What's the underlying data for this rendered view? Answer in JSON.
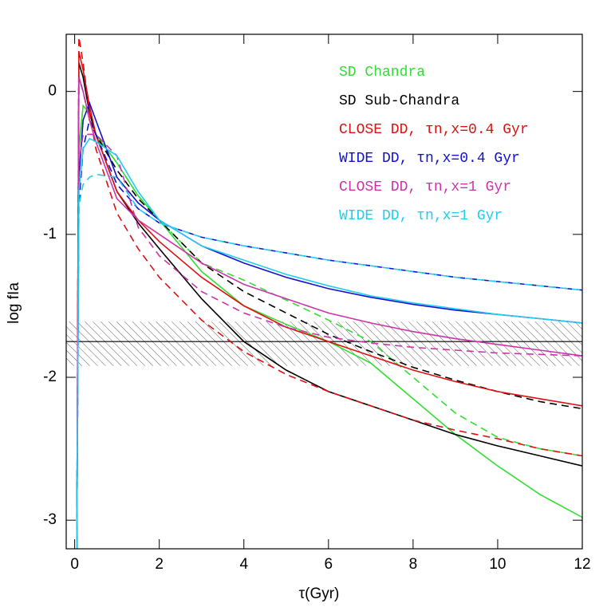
{
  "chart_data": {
    "type": "line",
    "x_label": "τ(Gyr)",
    "y_label": "log fIa",
    "xlim": [
      -0.2,
      12
    ],
    "ylim": [
      -3.2,
      0.4
    ],
    "xticks": [
      0,
      2,
      4,
      6,
      8,
      10,
      12
    ],
    "yticks": [
      -3,
      -2,
      -1,
      0
    ],
    "x": [
      0.05,
      0.1,
      0.2,
      0.35,
      0.5,
      1,
      1.5,
      2,
      3,
      4,
      5,
      6,
      7,
      8,
      9,
      10,
      11,
      12
    ],
    "band": {
      "lower": -1.92,
      "upper": -1.61,
      "center": -1.75
    },
    "series": [
      {
        "name": "SD Chandra",
        "color": "#33dd33",
        "values": [
          -3.2,
          -0.4,
          -0.1,
          -0.15,
          -0.3,
          -0.5,
          -0.73,
          -0.9,
          -1.26,
          -1.5,
          -1.63,
          -1.75,
          -1.9,
          -2.15,
          -2.4,
          -2.62,
          -2.82,
          -2.98
        ],
        "dashed_values": [
          -3.2,
          -0.4,
          -0.1,
          -0.15,
          -0.3,
          -0.5,
          -0.73,
          -0.9,
          -1.2,
          -1.32,
          -1.46,
          -1.6,
          -1.75,
          -2.0,
          -2.25,
          -2.42,
          -2.5,
          -2.55
        ]
      },
      {
        "name": "SD Sub-Chandra",
        "color": "#000000",
        "values": [
          -3.2,
          0.2,
          0.1,
          -0.15,
          -0.3,
          -0.7,
          -0.92,
          -1.1,
          -1.45,
          -1.75,
          -1.95,
          -2.1,
          -2.2,
          -2.3,
          -2.4,
          -2.48,
          -2.55,
          -2.62
        ],
        "dashed_values": [
          -3.2,
          0.1,
          0.0,
          -0.2,
          -0.3,
          -0.55,
          -0.75,
          -0.9,
          -1.2,
          -1.4,
          -1.55,
          -1.7,
          -1.82,
          -1.93,
          -2.02,
          -2.1,
          -2.17,
          -2.22
        ]
      },
      {
        "name": "CLOSE DD, τn,x=0.4 Gyr",
        "color": "#dd1111",
        "values": [
          -3.2,
          0.28,
          0.15,
          -0.1,
          -0.3,
          -0.7,
          -0.9,
          -1.05,
          -1.3,
          -1.5,
          -1.65,
          -1.75,
          -1.85,
          -1.95,
          -2.03,
          -2.1,
          -2.15,
          -2.2
        ],
        "dashed_values": [
          -3.2,
          0.38,
          0.2,
          -0.15,
          -0.4,
          -0.85,
          -1.1,
          -1.3,
          -1.6,
          -1.82,
          -1.98,
          -2.1,
          -2.2,
          -2.3,
          -2.37,
          -2.43,
          -2.5,
          -2.55
        ]
      },
      {
        "name": "WIDE DD, τn,x=0.4 Gyr",
        "color": "#1111cc",
        "values": [
          -3.2,
          -0.6,
          -0.2,
          -0.08,
          -0.2,
          -0.6,
          -0.78,
          -0.9,
          -1.08,
          -1.2,
          -1.3,
          -1.38,
          -1.44,
          -1.49,
          -1.53,
          -1.56,
          -1.59,
          -1.62
        ],
        "dashed_values": [
          -3.2,
          -0.8,
          -0.4,
          -0.2,
          -0.3,
          -0.65,
          -0.82,
          -0.92,
          -1.02,
          -1.08,
          -1.13,
          -1.18,
          -1.22,
          -1.26,
          -1.3,
          -1.33,
          -1.36,
          -1.39
        ]
      },
      {
        "name": "CLOSE DD, τn,x=1 Gyr",
        "color": "#cc33aa",
        "values": [
          -3.2,
          0.1,
          0.0,
          -0.2,
          -0.35,
          -0.75,
          -0.9,
          -1.0,
          -1.2,
          -1.35,
          -1.45,
          -1.55,
          -1.62,
          -1.68,
          -1.73,
          -1.77,
          -1.81,
          -1.85
        ],
        "dashed_values": [
          -3.2,
          -0.5,
          -0.3,
          -0.3,
          -0.3,
          -0.45,
          -0.95,
          -1.15,
          -1.4,
          -1.55,
          -1.65,
          -1.72,
          -1.76,
          -1.79,
          -1.81,
          -1.83,
          -1.84,
          -1.85
        ]
      },
      {
        "name": "WIDE DD, τn,x=1 Gyr",
        "color": "#22ccee",
        "values": [
          -3.2,
          -0.7,
          -0.4,
          -0.33,
          -0.35,
          -0.45,
          -0.7,
          -0.9,
          -1.08,
          -1.18,
          -1.28,
          -1.36,
          -1.43,
          -1.48,
          -1.52,
          -1.56,
          -1.59,
          -1.62
        ],
        "dashed_values": [
          -3.2,
          -0.8,
          -0.65,
          -0.6,
          -0.58,
          -0.6,
          -0.82,
          -0.92,
          -1.02,
          -1.08,
          -1.13,
          -1.18,
          -1.22,
          -1.26,
          -1.3,
          -1.33,
          -1.36,
          -1.39
        ]
      }
    ]
  }
}
